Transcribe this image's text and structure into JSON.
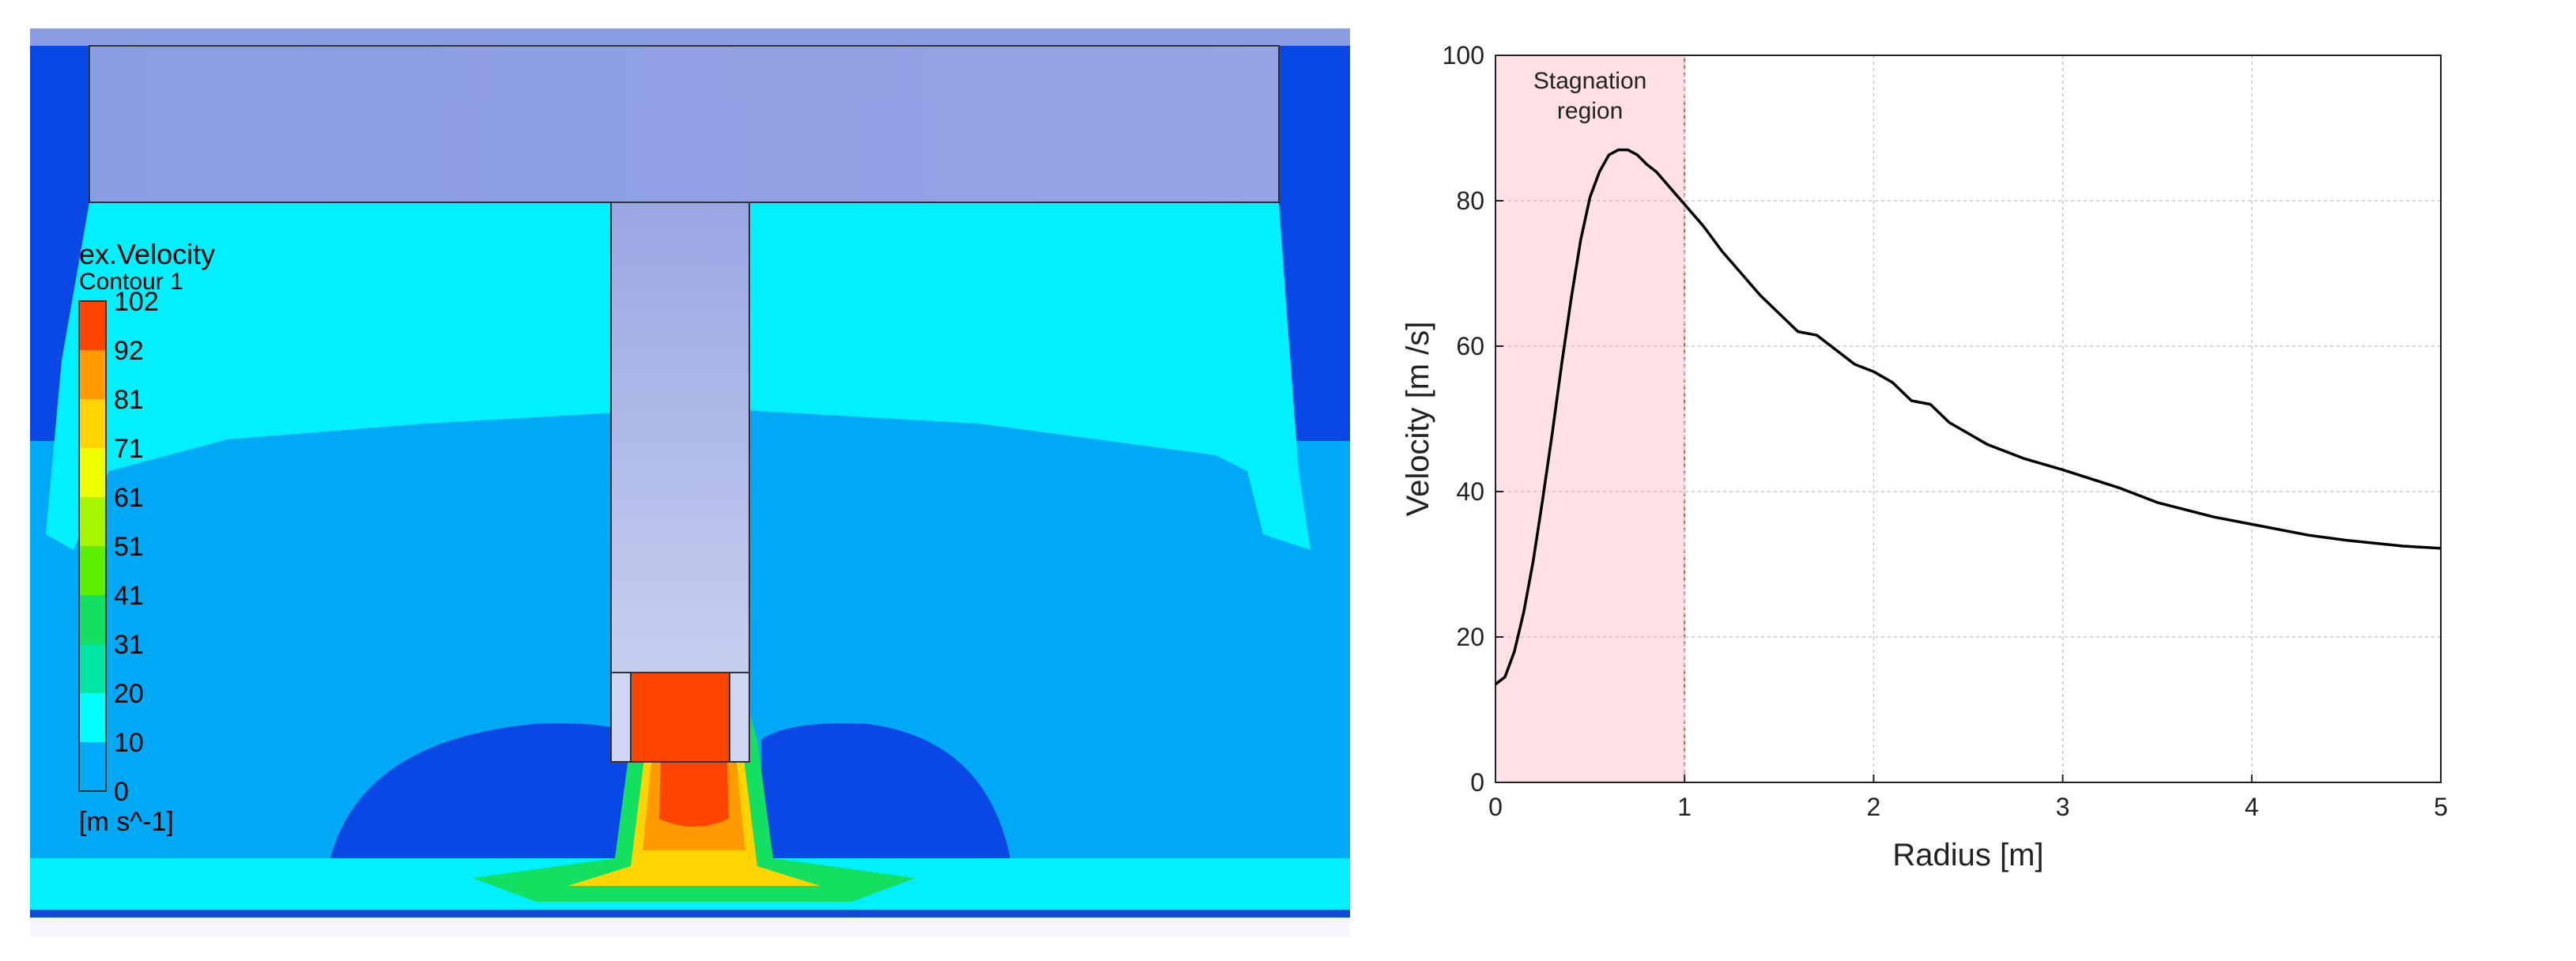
{
  "contour": {
    "title": "ex.Velocity",
    "subtitle": "Contour 1",
    "units": "[m s^-1]",
    "levels": [
      "102",
      "92",
      "81",
      "71",
      "61",
      "51",
      "41",
      "31",
      "20",
      "10",
      "0"
    ],
    "colors": [
      "#ff4500",
      "#ff9a00",
      "#ffd400",
      "#eeff00",
      "#a8f500",
      "#5cef00",
      "#13e060",
      "#00e6a3",
      "#00ffff",
      "#00aaff",
      "#0a3ad9"
    ]
  },
  "chart_data": {
    "type": "line",
    "title": "",
    "xlabel": "Radius [m]",
    "ylabel": "Velocity [m /s]",
    "xlim": [
      0,
      5
    ],
    "ylim": [
      0,
      100
    ],
    "xticks": [
      "0",
      "1",
      "2",
      "3",
      "4",
      "5"
    ],
    "yticks": [
      "0",
      "20",
      "40",
      "60",
      "80",
      "100"
    ],
    "grid": true,
    "line_color": "#000000",
    "region": {
      "x": [
        0,
        1
      ],
      "label_line1": "Stagnation",
      "label_line2": "region",
      "color": "#ffe0e4",
      "border": "#c0504d"
    },
    "series": [
      {
        "x": [
          0.0,
          0.05,
          0.1,
          0.15,
          0.2,
          0.25,
          0.3,
          0.35,
          0.4,
          0.45,
          0.5,
          0.55,
          0.6,
          0.65,
          0.7,
          0.75,
          0.8,
          0.85,
          0.9,
          0.95,
          1.0,
          1.1,
          1.2,
          1.3,
          1.4,
          1.5,
          1.6,
          1.7,
          1.8,
          1.9,
          2.0,
          2.1,
          2.2,
          2.3,
          2.4,
          2.5,
          2.6,
          2.8,
          3.0,
          3.3,
          3.5,
          3.8,
          4.0,
          4.3,
          4.5,
          4.8,
          5.0
        ],
        "y": [
          13.5,
          14.5,
          18.0,
          23.5,
          30.5,
          39.0,
          48.0,
          57.5,
          66.5,
          74.5,
          80.5,
          84.0,
          86.3,
          87.0,
          87.0,
          86.3,
          85.0,
          84.0,
          82.5,
          81.0,
          79.5,
          76.5,
          73.0,
          70.0,
          67.0,
          64.5,
          62.0,
          61.5,
          59.5,
          57.5,
          56.5,
          55.0,
          52.5,
          52.0,
          49.5,
          48.0,
          46.5,
          44.5,
          43.0,
          40.5,
          38.5,
          36.5,
          35.5,
          34.0,
          33.3,
          32.5,
          32.2
        ]
      }
    ]
  }
}
